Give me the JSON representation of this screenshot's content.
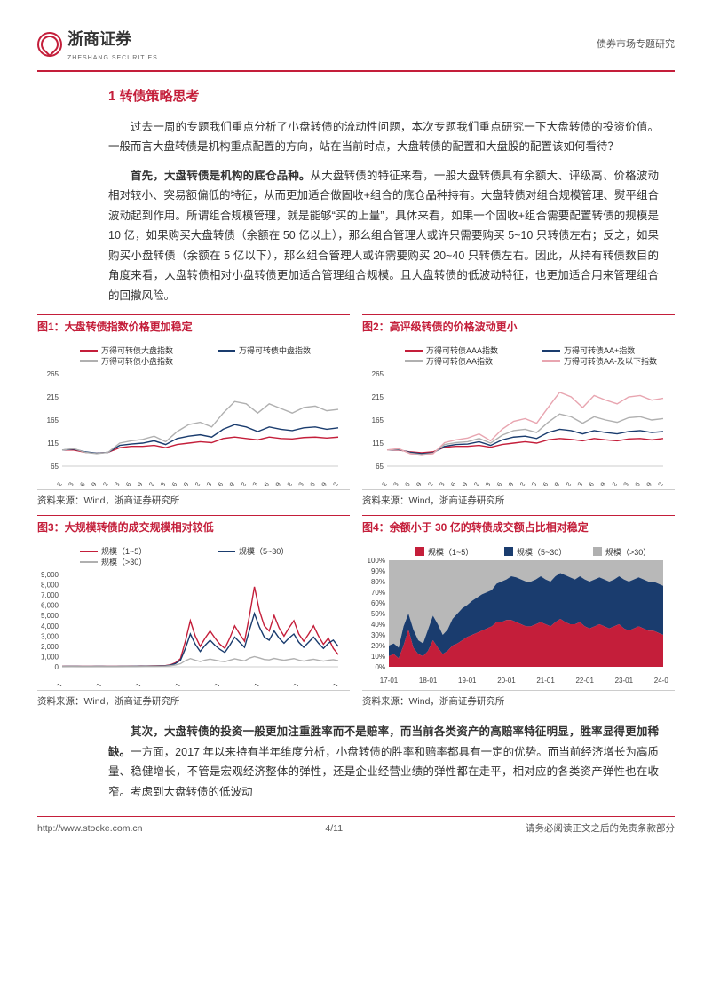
{
  "header": {
    "company": "浙商证券",
    "company_en": "ZHESHANG SECURITIES",
    "right_text": "债券市场专题研究"
  },
  "section": {
    "title": "1 转债策略思考"
  },
  "paragraphs": {
    "p1": "过去一周的专题我们重点分析了小盘转债的流动性问题，本次专题我们重点研究一下大盘转债的投资价值。一般而言大盘转债是机构重点配置的方向，站在当前时点，大盘转债的配置和大盘股的配置该如何看待？",
    "p2_lead": "首先，大盘转债是机构的底仓品种。",
    "p2_body": "从大盘转债的特征来看，一般大盘转债具有余额大、评级高、价格波动相对较小、突易额偏低的特征，从而更加适合做固收+组合的底仓品种持有。大盘转债对组合规模管理、熨平组合波动起到作用。所谓组合规模管理，就是能够“买的上量”，具体来看，如果一个固收+组合需要配置转债的规模是 10 亿，如果购买大盘转债（余额在 50 亿以上），那么组合管理人或许只需要购买 5~10 只转债左右；反之，如果购买小盘转债（余额在 5 亿以下），那么组合管理人或许需要购买 20~40 只转债左右。因此，从持有转债数目的角度来看，大盘转债相对小盘转债更加适合管理组合规模。且大盘转债的低波动特征，也更加适合用来管理组合的回撤风险。",
    "p3_lead": "其次，大盘转债的投资一般更加注重胜率而不是赔率，而当前各类资产的高赔率特征明显，胜率显得更加稀缺。",
    "p3_body": "一方面，2017 年以来持有半年维度分析，小盘转债的胜率和赔率都具有一定的优势。而当前经济增长为高质量、稳健增长，不管是宏观经济整体的弹性，还是企业经营业绩的弹性都在走平，相对应的各类资产弹性也在收窄。考虑到大盘转债的低波动"
  },
  "chart1": {
    "title": "图1：大盘转债指数价格更加稳定",
    "type": "line",
    "x_labels": [
      "17-12",
      "18-03",
      "18-06",
      "18-09",
      "18-12",
      "19-03",
      "19-06",
      "19-09",
      "19-12",
      "20-03",
      "20-06",
      "20-09",
      "20-12",
      "21-03",
      "21-06",
      "21-09",
      "21-12",
      "22-03",
      "22-06",
      "22-09",
      "22-12",
      "23-03",
      "23-06",
      "23-09",
      "23-12"
    ],
    "ylim": [
      65,
      265
    ],
    "yticks": [
      65,
      115,
      165,
      215,
      265
    ],
    "series": [
      {
        "name": "万得可转债大盘指数",
        "color": "#c41e3a",
        "values": [
          100,
          100,
          95,
          93,
          95,
          105,
          108,
          108,
          110,
          105,
          112,
          115,
          118,
          116,
          125,
          128,
          125,
          122,
          128,
          125,
          124,
          127,
          128,
          126,
          128
        ]
      },
      {
        "name": "万得可转债中盘指数",
        "color": "#1a3c6e",
        "values": [
          100,
          102,
          96,
          93,
          95,
          110,
          113,
          115,
          120,
          112,
          125,
          130,
          133,
          128,
          145,
          155,
          150,
          140,
          150,
          145,
          142,
          148,
          150,
          145,
          148
        ]
      },
      {
        "name": "万得可转债小盘指数",
        "color": "#b0b0b0",
        "values": [
          100,
          103,
          95,
          92,
          95,
          115,
          120,
          123,
          130,
          118,
          140,
          155,
          160,
          150,
          180,
          205,
          200,
          180,
          200,
          190,
          180,
          192,
          195,
          185,
          188
        ]
      }
    ],
    "source": "资料来源：Wind，浙商证券研究所"
  },
  "chart2": {
    "title": "图2：高评级转债的价格波动更小",
    "type": "line",
    "x_labels": [
      "17-12",
      "18-03",
      "18-06",
      "18-09",
      "18-12",
      "19-03",
      "19-06",
      "19-09",
      "19-12",
      "20-03",
      "20-06",
      "20-09",
      "20-12",
      "21-03",
      "21-06",
      "21-09",
      "21-12",
      "22-03",
      "22-06",
      "22-09",
      "22-12",
      "23-03",
      "23-06",
      "23-09",
      "23-12"
    ],
    "ylim": [
      65,
      265
    ],
    "yticks": [
      65,
      115,
      165,
      215,
      265
    ],
    "series": [
      {
        "name": "万得可转债AAA指数",
        "color": "#c41e3a",
        "values": [
          100,
          100,
          96,
          94,
          96,
          106,
          108,
          108,
          110,
          106,
          112,
          115,
          118,
          115,
          122,
          125,
          123,
          120,
          125,
          122,
          120,
          124,
          125,
          122,
          125
        ]
      },
      {
        "name": "万得可转债AA+指数",
        "color": "#1a3c6e",
        "values": [
          100,
          101,
          95,
          92,
          94,
          108,
          112,
          113,
          118,
          110,
          122,
          128,
          130,
          125,
          138,
          145,
          142,
          135,
          142,
          138,
          135,
          140,
          142,
          138,
          140
        ]
      },
      {
        "name": "万得可转债AA指数",
        "color": "#b0b0b0",
        "values": [
          100,
          102,
          93,
          90,
          93,
          112,
          116,
          118,
          125,
          115,
          132,
          142,
          145,
          138,
          160,
          178,
          172,
          158,
          172,
          165,
          160,
          170,
          172,
          165,
          168
        ]
      },
      {
        "name": "万得可转债AA-及以下指数",
        "color": "#e8a5b0",
        "values": [
          100,
          103,
          92,
          88,
          92,
          116,
          122,
          126,
          135,
          120,
          145,
          162,
          168,
          158,
          192,
          225,
          215,
          192,
          218,
          208,
          200,
          215,
          218,
          208,
          212
        ]
      }
    ],
    "source": "资料来源：Wind，浙商证券研究所"
  },
  "chart3": {
    "title": "图3：大规模转债的成交规模相对较低",
    "type": "line",
    "x_labels": [
      "17-01",
      "18-01",
      "19-01",
      "20-01",
      "21-01",
      "22-01",
      "23-01",
      "24-01"
    ],
    "ylim": [
      0,
      9000
    ],
    "yticks": [
      0,
      1000,
      2000,
      3000,
      4000,
      5000,
      6000,
      7000,
      8000,
      9000
    ],
    "series": [
      {
        "name": "规模（1~5）",
        "color": "#c41e3a",
        "values_dense": [
          50,
          55,
          60,
          55,
          50,
          45,
          50,
          55,
          60,
          50,
          45,
          50,
          55,
          60,
          65,
          70,
          75,
          80,
          90,
          100,
          110,
          120,
          200,
          400,
          800,
          2500,
          4500,
          3000,
          2000,
          2800,
          3500,
          2800,
          2200,
          1800,
          2800,
          4000,
          3200,
          2500,
          5000,
          7800,
          5500,
          4000,
          3500,
          5000,
          3800,
          3000,
          3800,
          4500,
          3200,
          2500,
          3200,
          4000,
          3000,
          2200,
          2800,
          1800,
          1200
        ]
      },
      {
        "name": "规模（5~30）",
        "color": "#1a3c6e",
        "values_dense": [
          40,
          45,
          48,
          45,
          42,
          40,
          42,
          45,
          48,
          42,
          40,
          42,
          45,
          48,
          52,
          55,
          60,
          65,
          72,
          80,
          90,
          100,
          160,
          320,
          640,
          1800,
          3200,
          2200,
          1500,
          2100,
          2600,
          2100,
          1700,
          1400,
          2100,
          2900,
          2400,
          1900,
          3600,
          5200,
          3900,
          2900,
          2600,
          3500,
          2800,
          2300,
          2800,
          3200,
          2400,
          1900,
          2400,
          2900,
          2300,
          1800,
          2300,
          2600,
          2000
        ]
      },
      {
        "name": "规模（>30）",
        "color": "#b0b0b0",
        "values_dense": [
          30,
          32,
          34,
          32,
          30,
          28,
          30,
          32,
          34,
          30,
          28,
          30,
          32,
          34,
          36,
          38,
          42,
          45,
          50,
          55,
          62,
          70,
          110,
          180,
          300,
          600,
          800,
          650,
          520,
          650,
          750,
          650,
          560,
          500,
          640,
          780,
          680,
          580,
          850,
          1000,
          870,
          720,
          680,
          820,
          720,
          640,
          720,
          800,
          660,
          560,
          660,
          740,
          640,
          560,
          640,
          700,
          600
        ]
      }
    ],
    "source": "资料来源：Wind，浙商证券研究所"
  },
  "chart4": {
    "title": "图4：余额小于 30 亿的转债成交额占比相对稳定",
    "type": "area-stacked",
    "x_labels": [
      "17-01",
      "18-01",
      "19-01",
      "20-01",
      "21-01",
      "22-01",
      "23-01",
      "24-01"
    ],
    "ylim": [
      0,
      100
    ],
    "yticks": [
      0,
      10,
      20,
      30,
      40,
      50,
      60,
      70,
      80,
      90,
      100
    ],
    "series": [
      {
        "name": "规模（1~5）",
        "color": "#c41e3a"
      },
      {
        "name": "规模（5~30）",
        "color": "#1a3c6e"
      },
      {
        "name": "规模（>30）",
        "color": "#b0b0b0"
      }
    ],
    "stack_bottom": [
      10,
      12,
      8,
      20,
      35,
      18,
      12,
      10,
      15,
      25,
      18,
      12,
      15,
      20,
      22,
      25,
      28,
      30,
      32,
      34,
      36,
      38,
      42,
      42,
      44,
      44,
      42,
      40,
      38,
      38,
      40,
      42,
      40,
      38,
      42,
      45,
      42,
      40,
      40,
      42,
      38,
      36,
      38,
      40,
      38,
      36,
      38,
      40,
      36,
      34,
      36,
      38,
      36,
      34,
      34,
      32,
      30
    ],
    "stack_mid": [
      20,
      22,
      18,
      38,
      50,
      35,
      25,
      22,
      35,
      48,
      40,
      30,
      35,
      45,
      50,
      55,
      58,
      62,
      65,
      68,
      70,
      72,
      78,
      80,
      82,
      85,
      84,
      82,
      80,
      80,
      82,
      85,
      82,
      80,
      85,
      88,
      86,
      84,
      82,
      85,
      82,
      80,
      82,
      84,
      82,
      80,
      82,
      85,
      82,
      80,
      82,
      84,
      82,
      80,
      80,
      78,
      76
    ],
    "source": "资料来源：Wind，浙商证券研究所"
  },
  "footer": {
    "left": "http://www.stocke.com.cn",
    "center": "4/11",
    "right": "请务必阅读正文之后的免责条款部分"
  }
}
